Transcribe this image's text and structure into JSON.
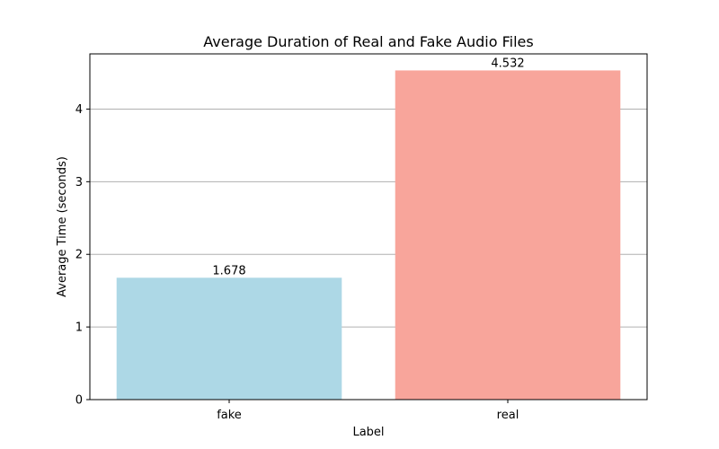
{
  "chart_data": {
    "type": "bar",
    "title": "Average Duration of Real and Fake Audio Files",
    "xlabel": "Label",
    "ylabel": "Average Time (seconds)",
    "categories": [
      "fake",
      "real"
    ],
    "values": [
      1.678,
      4.532
    ],
    "value_labels": [
      "1.678",
      "4.532"
    ],
    "colors": [
      "#add8e6",
      "#f8a59b"
    ],
    "ylim": [
      0,
      4.76
    ],
    "yticks": [
      0,
      1,
      2,
      3,
      4
    ],
    "ytick_labels": [
      "0",
      "1",
      "2",
      "3",
      "4"
    ],
    "grid": "horizontal",
    "grid_color": "#b0b0b0"
  }
}
